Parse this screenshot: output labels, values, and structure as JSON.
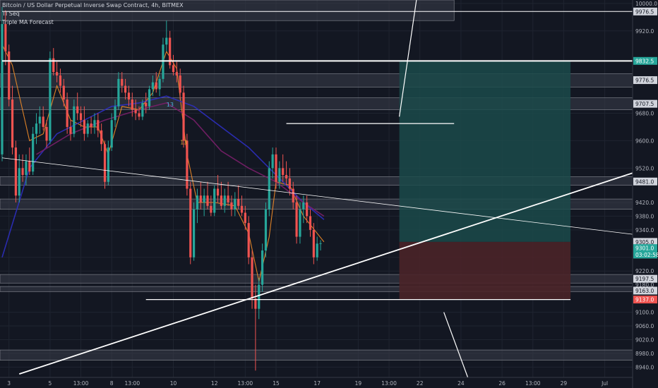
{
  "header": {
    "title": "Bitcoin / US Dollar Perpetual Inverse Swap Contract, 4h, BITMEX",
    "indicators": [
      "TI Seq",
      "Triple MA Forecast"
    ]
  },
  "colors": {
    "background": "#131722",
    "up": "#26a69a",
    "down": "#ef5350",
    "target_zone": "#1b4a4a",
    "stop_zone": "#4a2428",
    "level_band": "#3a3e4a",
    "ma_orange": "#f28c28",
    "ma_blue": "#2d2fc0",
    "ma_purple": "#7a1f6a",
    "last_price": "#26a69a",
    "stop_price": "#ef5350"
  },
  "chart_data": {
    "type": "candlestick",
    "title": "Bitcoin / US Dollar Perpetual Inverse Swap Contract, 4h, BITMEX",
    "ylim": [
      8910,
      10010
    ],
    "y_ticks": [
      10000,
      9920,
      9680,
      9600,
      9520,
      9420,
      9380,
      9340,
      9260,
      9220,
      9100,
      9060,
      9020,
      8980,
      8940
    ],
    "x_ticks": [
      {
        "label": "3",
        "i": 2
      },
      {
        "label": "5",
        "i": 14
      },
      {
        "label": "13:00",
        "i": 23
      },
      {
        "label": "8",
        "i": 32
      },
      {
        "label": "13:00",
        "i": 38
      },
      {
        "label": "10",
        "i": 50
      },
      {
        "label": "12",
        "i": 62
      },
      {
        "label": "13:00",
        "i": 71
      },
      {
        "label": "15",
        "i": 80
      },
      {
        "label": "17",
        "i": 92
      },
      {
        "label": "19",
        "i": 104
      },
      {
        "label": "13:00",
        "i": 113
      },
      {
        "label": "22",
        "i": 122
      },
      {
        "label": "24",
        "i": 134
      },
      {
        "label": "26",
        "i": 146
      },
      {
        "label": "13:00",
        "i": 155
      },
      {
        "label": "29",
        "i": 164
      },
      {
        "label": "Jul",
        "i": 176
      }
    ],
    "candles": [
      {
        "o": 9560,
        "h": 9990,
        "l": 9540,
        "c": 9940
      },
      {
        "o": 9940,
        "h": 9980,
        "l": 9820,
        "c": 9860
      },
      {
        "o": 9860,
        "h": 9880,
        "l": 9700,
        "c": 9720
      },
      {
        "o": 9720,
        "h": 9760,
        "l": 9560,
        "c": 9580
      },
      {
        "o": 9580,
        "h": 9600,
        "l": 9420,
        "c": 9440
      },
      {
        "o": 9440,
        "h": 9560,
        "l": 9420,
        "c": 9520
      },
      {
        "o": 9520,
        "h": 9560,
        "l": 9480,
        "c": 9500
      },
      {
        "o": 9500,
        "h": 9560,
        "l": 9470,
        "c": 9540
      },
      {
        "o": 9540,
        "h": 9580,
        "l": 9500,
        "c": 9510
      },
      {
        "o": 9510,
        "h": 9640,
        "l": 9500,
        "c": 9620
      },
      {
        "o": 9620,
        "h": 9680,
        "l": 9590,
        "c": 9650
      },
      {
        "o": 9650,
        "h": 9700,
        "l": 9620,
        "c": 9670
      },
      {
        "o": 9670,
        "h": 9700,
        "l": 9630,
        "c": 9640
      },
      {
        "o": 9640,
        "h": 9660,
        "l": 9580,
        "c": 9600
      },
      {
        "o": 9600,
        "h": 9860,
        "l": 9590,
        "c": 9840
      },
      {
        "o": 9840,
        "h": 9870,
        "l": 9790,
        "c": 9800
      },
      {
        "o": 9800,
        "h": 9830,
        "l": 9770,
        "c": 9790
      },
      {
        "o": 9790,
        "h": 9810,
        "l": 9740,
        "c": 9760
      },
      {
        "o": 9760,
        "h": 9780,
        "l": 9700,
        "c": 9720
      },
      {
        "o": 9720,
        "h": 9740,
        "l": 9620,
        "c": 9640
      },
      {
        "o": 9640,
        "h": 9660,
        "l": 9600,
        "c": 9620
      },
      {
        "o": 9620,
        "h": 9720,
        "l": 9610,
        "c": 9700
      },
      {
        "o": 9700,
        "h": 9740,
        "l": 9660,
        "c": 9680
      },
      {
        "o": 9680,
        "h": 9700,
        "l": 9640,
        "c": 9660
      },
      {
        "o": 9660,
        "h": 9700,
        "l": 9600,
        "c": 9620
      },
      {
        "o": 9620,
        "h": 9660,
        "l": 9610,
        "c": 9650
      },
      {
        "o": 9650,
        "h": 9670,
        "l": 9620,
        "c": 9640
      },
      {
        "o": 9640,
        "h": 9680,
        "l": 9620,
        "c": 9660
      },
      {
        "o": 9660,
        "h": 9680,
        "l": 9610,
        "c": 9630
      },
      {
        "o": 9630,
        "h": 9650,
        "l": 9570,
        "c": 9590
      },
      {
        "o": 9590,
        "h": 9600,
        "l": 9460,
        "c": 9480
      },
      {
        "o": 9480,
        "h": 9600,
        "l": 9470,
        "c": 9580
      },
      {
        "o": 9580,
        "h": 9680,
        "l": 9570,
        "c": 9660
      },
      {
        "o": 9660,
        "h": 9720,
        "l": 9640,
        "c": 9700
      },
      {
        "o": 9700,
        "h": 9800,
        "l": 9690,
        "c": 9780
      },
      {
        "o": 9780,
        "h": 9800,
        "l": 9740,
        "c": 9760
      },
      {
        "o": 9760,
        "h": 9780,
        "l": 9720,
        "c": 9740
      },
      {
        "o": 9740,
        "h": 9760,
        "l": 9700,
        "c": 9720
      },
      {
        "o": 9720,
        "h": 9740,
        "l": 9670,
        "c": 9690
      },
      {
        "o": 9690,
        "h": 9720,
        "l": 9660,
        "c": 9680
      },
      {
        "o": 9680,
        "h": 9700,
        "l": 9660,
        "c": 9670
      },
      {
        "o": 9670,
        "h": 9720,
        "l": 9660,
        "c": 9710
      },
      {
        "o": 9710,
        "h": 9740,
        "l": 9680,
        "c": 9700
      },
      {
        "o": 9700,
        "h": 9760,
        "l": 9690,
        "c": 9750
      },
      {
        "o": 9750,
        "h": 9790,
        "l": 9730,
        "c": 9770
      },
      {
        "o": 9770,
        "h": 9800,
        "l": 9740,
        "c": 9750
      },
      {
        "o": 9750,
        "h": 9790,
        "l": 9730,
        "c": 9780
      },
      {
        "o": 9780,
        "h": 9900,
        "l": 9770,
        "c": 9880
      },
      {
        "o": 9880,
        "h": 9950,
        "l": 9860,
        "c": 9900
      },
      {
        "o": 9900,
        "h": 9920,
        "l": 9810,
        "c": 9820
      },
      {
        "o": 9820,
        "h": 9850,
        "l": 9790,
        "c": 9800
      },
      {
        "o": 9800,
        "h": 9830,
        "l": 9770,
        "c": 9790
      },
      {
        "o": 9790,
        "h": 9810,
        "l": 9720,
        "c": 9740
      },
      {
        "o": 9740,
        "h": 9760,
        "l": 9580,
        "c": 9600
      },
      {
        "o": 9600,
        "h": 9620,
        "l": 9440,
        "c": 9460
      },
      {
        "o": 9460,
        "h": 9480,
        "l": 9240,
        "c": 9260
      },
      {
        "o": 9260,
        "h": 9420,
        "l": 9250,
        "c": 9400
      },
      {
        "o": 9400,
        "h": 9460,
        "l": 9360,
        "c": 9440
      },
      {
        "o": 9440,
        "h": 9480,
        "l": 9400,
        "c": 9420
      },
      {
        "o": 9420,
        "h": 9460,
        "l": 9380,
        "c": 9440
      },
      {
        "o": 9440,
        "h": 9480,
        "l": 9400,
        "c": 9410
      },
      {
        "o": 9410,
        "h": 9440,
        "l": 9380,
        "c": 9390
      },
      {
        "o": 9390,
        "h": 9470,
        "l": 9380,
        "c": 9460
      },
      {
        "o": 9460,
        "h": 9500,
        "l": 9420,
        "c": 9440
      },
      {
        "o": 9440,
        "h": 9480,
        "l": 9400,
        "c": 9410
      },
      {
        "o": 9410,
        "h": 9460,
        "l": 9390,
        "c": 9440
      },
      {
        "o": 9440,
        "h": 9480,
        "l": 9410,
        "c": 9420
      },
      {
        "o": 9420,
        "h": 9440,
        "l": 9380,
        "c": 9400
      },
      {
        "o": 9400,
        "h": 9450,
        "l": 9380,
        "c": 9430
      },
      {
        "o": 9430,
        "h": 9470,
        "l": 9400,
        "c": 9410
      },
      {
        "o": 9410,
        "h": 9440,
        "l": 9380,
        "c": 9390
      },
      {
        "o": 9390,
        "h": 9410,
        "l": 9340,
        "c": 9360
      },
      {
        "o": 9360,
        "h": 9380,
        "l": 9240,
        "c": 9260
      },
      {
        "o": 9260,
        "h": 9280,
        "l": 9110,
        "c": 9140
      },
      {
        "o": 9140,
        "h": 9180,
        "l": 8930,
        "c": 9110
      },
      {
        "o": 9110,
        "h": 9200,
        "l": 9080,
        "c": 9180
      },
      {
        "o": 9180,
        "h": 9300,
        "l": 9160,
        "c": 9280
      },
      {
        "o": 9280,
        "h": 9420,
        "l": 9260,
        "c": 9400
      },
      {
        "o": 9400,
        "h": 9540,
        "l": 9380,
        "c": 9520
      },
      {
        "o": 9520,
        "h": 9580,
        "l": 9490,
        "c": 9560
      },
      {
        "o": 9560,
        "h": 9580,
        "l": 9460,
        "c": 9480
      },
      {
        "o": 9480,
        "h": 9540,
        "l": 9460,
        "c": 9520
      },
      {
        "o": 9520,
        "h": 9560,
        "l": 9480,
        "c": 9500
      },
      {
        "o": 9500,
        "h": 9540,
        "l": 9470,
        "c": 9490
      },
      {
        "o": 9490,
        "h": 9520,
        "l": 9440,
        "c": 9460
      },
      {
        "o": 9460,
        "h": 9480,
        "l": 9400,
        "c": 9420
      },
      {
        "o": 9420,
        "h": 9440,
        "l": 9300,
        "c": 9320
      },
      {
        "o": 9320,
        "h": 9420,
        "l": 9300,
        "c": 9400
      },
      {
        "o": 9400,
        "h": 9440,
        "l": 9360,
        "c": 9420
      },
      {
        "o": 9420,
        "h": 9440,
        "l": 9360,
        "c": 9380
      },
      {
        "o": 9380,
        "h": 9400,
        "l": 9320,
        "c": 9340
      },
      {
        "o": 9340,
        "h": 9360,
        "l": 9240,
        "c": 9260
      },
      {
        "o": 9260,
        "h": 9320,
        "l": 9250,
        "c": 9300
      },
      {
        "o": 9300,
        "h": 9310,
        "l": 9280,
        "c": 9301
      }
    ],
    "moving_averages": [
      {
        "color": "#f28c28",
        "values": [
          {
            "i": 0,
            "v": 9880
          },
          {
            "i": 3,
            "v": 9820
          },
          {
            "i": 8,
            "v": 9600
          },
          {
            "i": 12,
            "v": 9620
          },
          {
            "i": 16,
            "v": 9760
          },
          {
            "i": 20,
            "v": 9660
          },
          {
            "i": 24,
            "v": 9640
          },
          {
            "i": 28,
            "v": 9640
          },
          {
            "i": 31,
            "v": 9560
          },
          {
            "i": 35,
            "v": 9700
          },
          {
            "i": 40,
            "v": 9690
          },
          {
            "i": 44,
            "v": 9740
          },
          {
            "i": 48,
            "v": 9860
          },
          {
            "i": 51,
            "v": 9810
          },
          {
            "i": 54,
            "v": 9560
          },
          {
            "i": 57,
            "v": 9420
          },
          {
            "i": 62,
            "v": 9420
          },
          {
            "i": 68,
            "v": 9410
          },
          {
            "i": 72,
            "v": 9330
          },
          {
            "i": 75,
            "v": 9190
          },
          {
            "i": 78,
            "v": 9320
          },
          {
            "i": 80,
            "v": 9480
          },
          {
            "i": 84,
            "v": 9470
          },
          {
            "i": 88,
            "v": 9380
          },
          {
            "i": 92,
            "v": 9330
          },
          {
            "i": 94,
            "v": 9305
          }
        ]
      },
      {
        "color": "#2d2fc0",
        "values": [
          {
            "i": 0,
            "v": 9260
          },
          {
            "i": 8,
            "v": 9520
          },
          {
            "i": 16,
            "v": 9620
          },
          {
            "i": 24,
            "v": 9660
          },
          {
            "i": 32,
            "v": 9700
          },
          {
            "i": 40,
            "v": 9710
          },
          {
            "i": 48,
            "v": 9730
          },
          {
            "i": 56,
            "v": 9700
          },
          {
            "i": 64,
            "v": 9640
          },
          {
            "i": 72,
            "v": 9580
          },
          {
            "i": 80,
            "v": 9500
          },
          {
            "i": 88,
            "v": 9420
          },
          {
            "i": 94,
            "v": 9370
          }
        ]
      },
      {
        "color": "#7a1f6a",
        "values": [
          {
            "i": 10,
            "v": 9560
          },
          {
            "i": 20,
            "v": 9620
          },
          {
            "i": 30,
            "v": 9660
          },
          {
            "i": 40,
            "v": 9690
          },
          {
            "i": 48,
            "v": 9710
          },
          {
            "i": 56,
            "v": 9660
          },
          {
            "i": 64,
            "v": 9570
          },
          {
            "i": 72,
            "v": 9520
          },
          {
            "i": 80,
            "v": 9480
          },
          {
            "i": 88,
            "v": 9420
          },
          {
            "i": 94,
            "v": 9380
          }
        ]
      }
    ],
    "horizontal_bands": [
      {
        "y1": 9950,
        "y2": 10010,
        "x_end_i": 132
      },
      {
        "y1": 9756,
        "y2": 9795
      },
      {
        "y1": 9690,
        "y2": 9725
      },
      {
        "y1": 9470,
        "y2": 9495
      },
      {
        "y1": 9400,
        "y2": 9430
      },
      {
        "y1": 9185,
        "y2": 9210
      },
      {
        "y1": 9160,
        "y2": 9175
      },
      {
        "y1": 8960,
        "y2": 8990
      }
    ],
    "horizontal_lines": [
      {
        "y": 9832.5,
        "x_start_i": 0,
        "width": 2
      },
      {
        "y": 9976.5,
        "x_start_i": 0,
        "width": 1
      },
      {
        "y": 9650,
        "x_start_i": 83,
        "x_end_i": 132,
        "width": 1.2
      },
      {
        "y": 9137,
        "x_start_i": 42,
        "x_end_i": 166,
        "width": 1.2
      }
    ],
    "trend_lines": [
      {
        "from": {
          "i": 0,
          "v": 9550
        },
        "to": {
          "i": 190,
          "v": 9320
        },
        "width": 0.8
      },
      {
        "from": {
          "i": 5,
          "v": 8920
        },
        "to": {
          "i": 190,
          "v": 9525
        },
        "width": 1.8
      },
      {
        "from": {
          "i": 116,
          "v": 9670
        },
        "to": {
          "i": 121,
          "v": 10010
        },
        "width": 1.2
      },
      {
        "from": {
          "i": 129,
          "v": 9100
        },
        "to": {
          "i": 136,
          "v": 8910
        },
        "width": 1.2
      }
    ],
    "position": {
      "start_i": 116,
      "end_i": 166,
      "entry": 9305,
      "target": 9832.5,
      "stop": 9137
    },
    "annotations": [
      {
        "text": "13",
        "i": 48,
        "v": 9700,
        "color": "#4fb0e0"
      },
      {
        "text": "13",
        "i": 52,
        "v": 9590,
        "color": "#f2a53a"
      }
    ],
    "price_labels": [
      {
        "text": "10000.0",
        "v": 10000
      },
      {
        "text": "9976.5",
        "v": 9976.5,
        "style": "band"
      },
      {
        "text": "9920.0",
        "v": 9920
      },
      {
        "text": "9832.5",
        "v": 9832.5,
        "style": "target"
      },
      {
        "text": "9776.5",
        "v": 9776.5,
        "style": "band"
      },
      {
        "text": "9707.5",
        "v": 9707.5,
        "style": "band"
      },
      {
        "text": "9680.0",
        "v": 9680
      },
      {
        "text": "9600.0",
        "v": 9600
      },
      {
        "text": "9520.0",
        "v": 9520
      },
      {
        "text": "9481.0",
        "v": 9481,
        "style": "band"
      },
      {
        "text": "9420.0",
        "v": 9420
      },
      {
        "text": "9380.0",
        "v": 9380
      },
      {
        "text": "9340.0",
        "v": 9340
      },
      {
        "text": "9305.0",
        "v": 9305,
        "style": "band"
      },
      {
        "text": "9301.0",
        "v": 9287,
        "style": "last"
      },
      {
        "text": "03:02:58",
        "v": 9268,
        "style": "last"
      },
      {
        "text": "9220.0",
        "v": 9220
      },
      {
        "text": "9197.5",
        "v": 9197.5,
        "style": "band"
      },
      {
        "text": "9180.0",
        "v": 9180
      },
      {
        "text": "9163.0",
        "v": 9163,
        "style": "band"
      },
      {
        "text": "9137.0",
        "v": 9137,
        "style": "stop"
      },
      {
        "text": "9100.0",
        "v": 9100
      },
      {
        "text": "9060.0",
        "v": 9060
      },
      {
        "text": "9020.0",
        "v": 9020
      },
      {
        "text": "8980.0",
        "v": 8980
      },
      {
        "text": "8940.0",
        "v": 8940
      }
    ]
  }
}
